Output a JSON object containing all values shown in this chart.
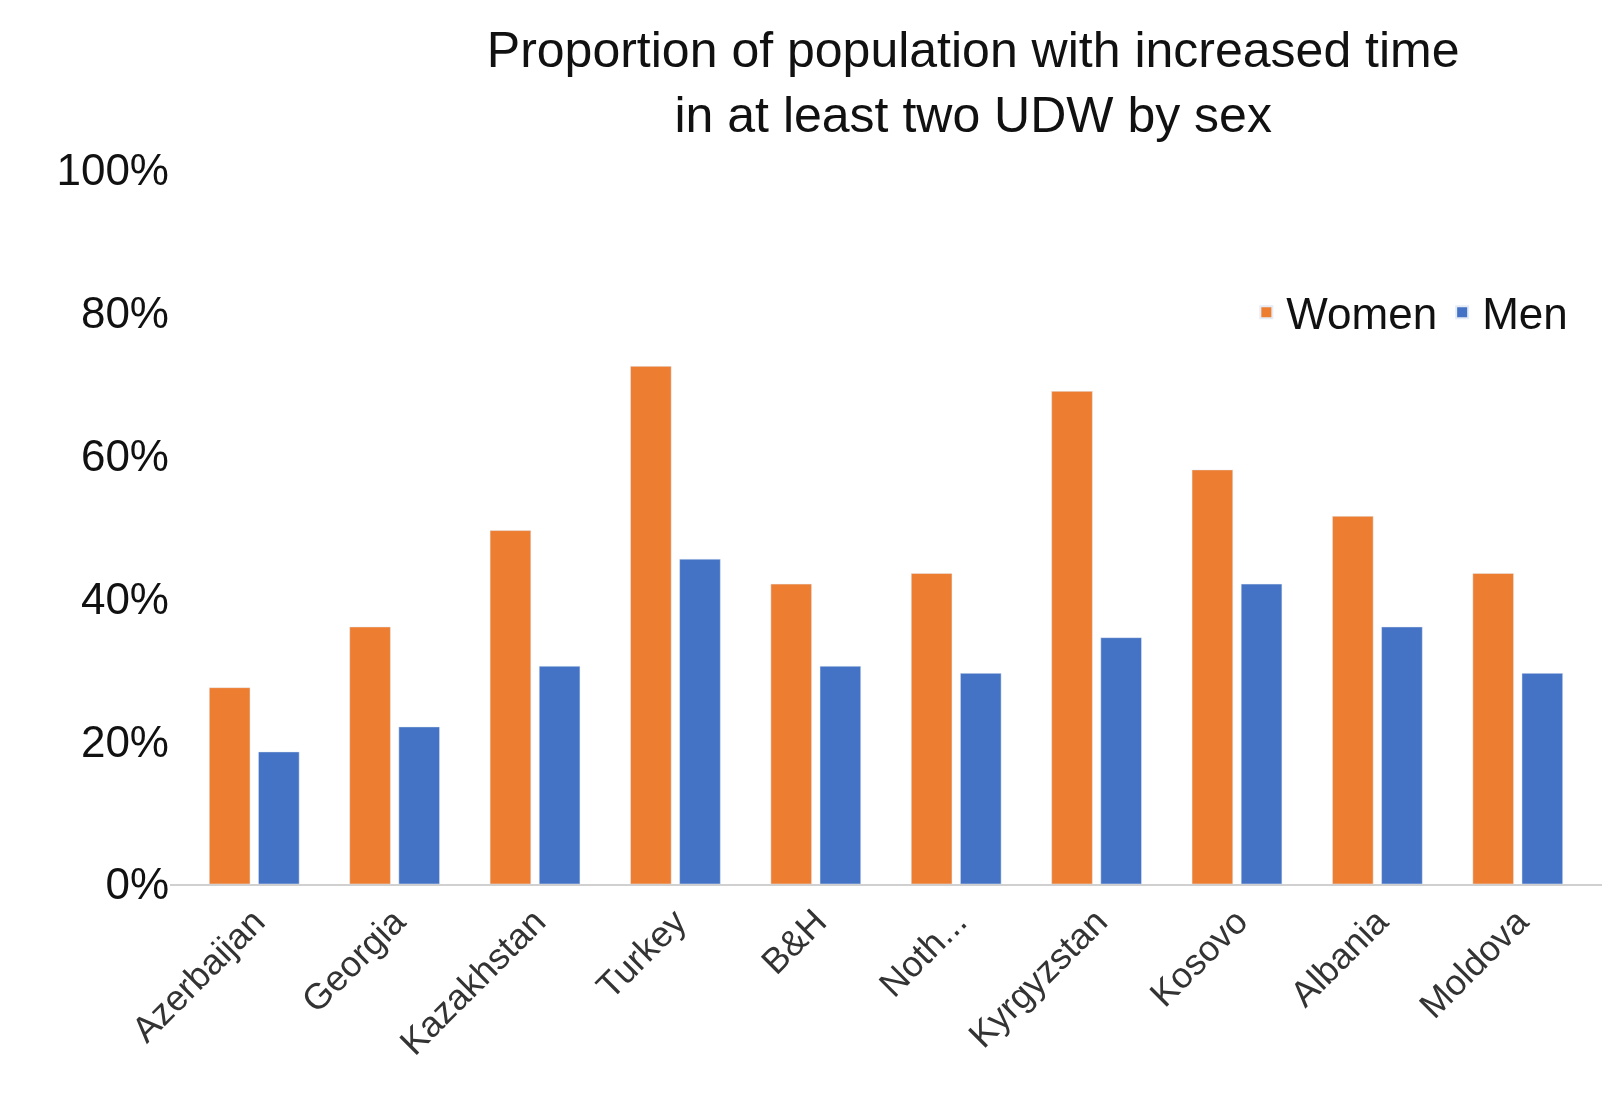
{
  "chart_data": {
    "type": "bar",
    "title": "Proportion of population with increased time\nin at least two UDW by sex",
    "categories": [
      "Azerbaijan",
      "Georgia",
      "Kazakhstan",
      "Turkey",
      "B&H",
      "Noth...",
      "Kyrgyzstan",
      "Kosovo",
      "Albania",
      "Moldova"
    ],
    "series": [
      {
        "name": "Women",
        "color": "#ed7d31",
        "values": [
          27.5,
          36,
          49.5,
          72.5,
          42,
          43.5,
          69,
          58,
          51.5,
          43.5
        ]
      },
      {
        "name": "Men",
        "color": "#4472c4",
        "values": [
          18.5,
          22,
          30.5,
          45.5,
          30.5,
          29.5,
          34.5,
          42,
          36,
          29.5
        ]
      }
    ],
    "ylim": [
      0,
      100
    ],
    "yticks": [
      {
        "value": 0,
        "label": "0%"
      },
      {
        "value": 20,
        "label": "20%"
      },
      {
        "value": 40,
        "label": "40%"
      },
      {
        "value": 60,
        "label": "60%"
      },
      {
        "value": 80,
        "label": "80%"
      },
      {
        "value": 100,
        "label": "100%"
      }
    ],
    "legend": "top right"
  }
}
